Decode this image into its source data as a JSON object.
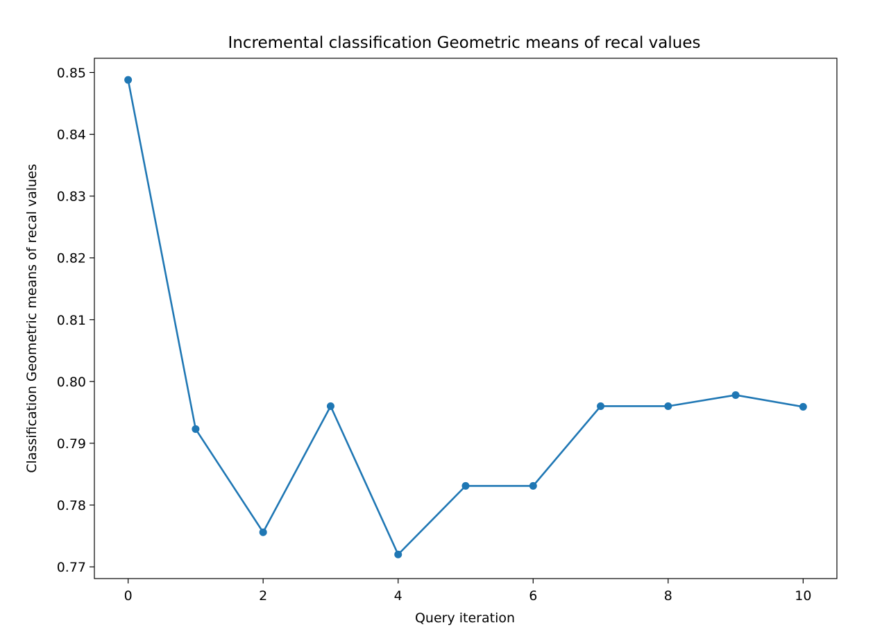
{
  "chart_data": {
    "type": "line",
    "title": "Incremental classification Geometric means of recal values",
    "xlabel": "Query iteration",
    "ylabel": "Classification Geometric means of recal values",
    "x": [
      0,
      1,
      2,
      3,
      4,
      5,
      6,
      7,
      8,
      9,
      10
    ],
    "series": [
      {
        "values": [
          0.8488,
          0.7923,
          0.7756,
          0.796,
          0.772,
          0.7831,
          0.7831,
          0.796,
          0.796,
          0.7978,
          0.7959
        ],
        "color": "#1f77b4",
        "marker": "circle"
      }
    ],
    "xticks": [
      0,
      2,
      4,
      6,
      8,
      10
    ],
    "xtick_labels": [
      "0",
      "2",
      "4",
      "6",
      "8",
      "10"
    ],
    "yticks": [
      0.77,
      0.78,
      0.79,
      0.8,
      0.81,
      0.82,
      0.83,
      0.84,
      0.85
    ],
    "ytick_labels": [
      "0.77",
      "0.78",
      "0.79",
      "0.80",
      "0.81",
      "0.82",
      "0.83",
      "0.84",
      "0.85"
    ],
    "xlim": [
      -0.5,
      10.5
    ],
    "ylim": [
      0.7681,
      0.8523
    ],
    "grid": false,
    "legend": "none"
  }
}
